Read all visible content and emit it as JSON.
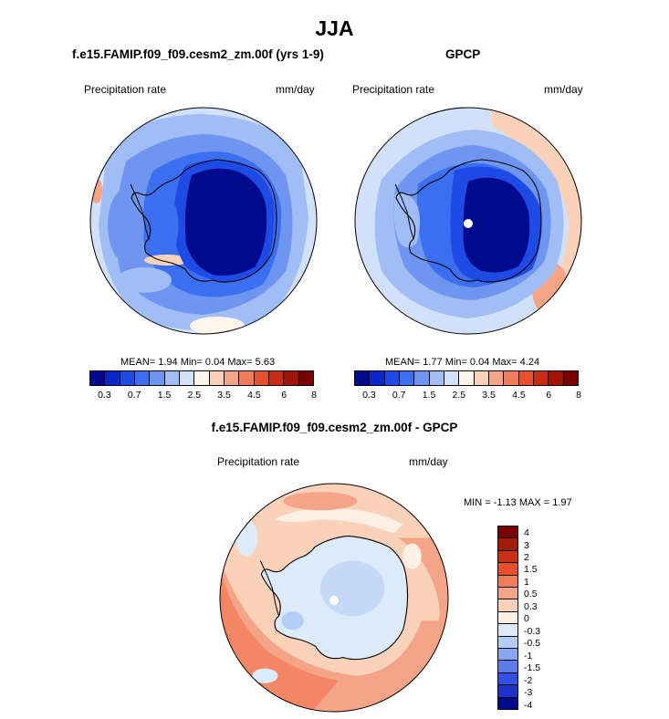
{
  "title": "JJA",
  "panels": [
    {
      "title": "f.e15.FAMIP.f09_f09.cesm2_zm.00f (yrs 1-9)",
      "left_label": "Precipitation rate",
      "right_label": "mm/day",
      "stats": "MEAN=   1.94  Min=   0.04  Max=   5.63"
    },
    {
      "title": "GPCP",
      "left_label": "Precipitation rate",
      "right_label": "mm/day",
      "stats": "MEAN=   1.77  Min=   0.04  Max=   4.24"
    },
    {
      "title": "f.e15.FAMIP.f09_f09.cesm2_zm.00f - GPCP",
      "left_label": "Precipitation rate",
      "right_label": "mm/day",
      "stats": "MIN =  -1.13 MAX =   1.97"
    }
  ],
  "abs_colorbar": {
    "colors": [
      "#000a8c",
      "#0a28c8",
      "#1e4be6",
      "#3c6ef0",
      "#6e96f0",
      "#a0bef5",
      "#d2e1fa",
      "#fff5eb",
      "#fad2b9",
      "#f5a587",
      "#f07c5a",
      "#e6502d",
      "#c82d14",
      "#a01405",
      "#780000"
    ],
    "tick_labels": [
      "0.3",
      "0.7",
      "1.5",
      "2.5",
      "3.5",
      "4.5",
      "6",
      "8"
    ]
  },
  "diff_colorbar": {
    "colors": [
      "#780000",
      "#a01e05",
      "#c83214",
      "#e6502d",
      "#f07c5a",
      "#f5a587",
      "#fad2b9",
      "#fff0e6",
      "#dceafa",
      "#b4cdf5",
      "#87a5f0",
      "#5a7deb",
      "#3250e1",
      "#1e32c8",
      "#000a8c"
    ],
    "tick_labels": [
      "4",
      "3",
      "2",
      "1.5",
      "1",
      "0.5",
      "0.3",
      "0",
      "-0.3",
      "-0.5",
      "-1",
      "-1.5",
      "-2",
      "-3",
      "-4"
    ]
  }
}
